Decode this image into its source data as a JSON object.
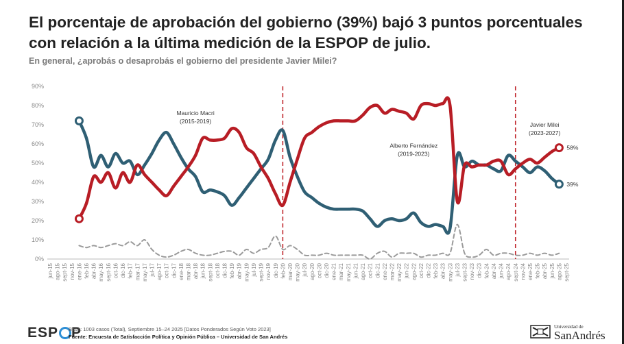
{
  "title": "El porcentaje de aprobación del gobierno (39%) bajó 3 puntos porcentuales con relación a la última medición de la ESPOP de julio.",
  "subtitle": "En general, ¿aprobás o desaprobás el gobierno del presidente Javier Milei?",
  "footer": {
    "logo_text": "ESP",
    "logo_last": "P",
    "note": "Base: 1003 casos (Total), Septiembre 15–24 2025 [Datos Ponderados Según Voto 2023]",
    "source": "Fuente: Encuesta de Satisfacción Política y Opinión Pública – Universidad de San Andrés",
    "university_small": "Universidad de",
    "university_big": "SanAndrés"
  },
  "colors": {
    "approve": "#2f5f74",
    "disapprove": "#b81d25",
    "nsnc": "#9a9a9a",
    "divider": "#c0282e"
  },
  "chart_data": {
    "type": "line",
    "ylim": [
      0,
      90
    ],
    "yticks": [
      "0%",
      "10%",
      "20%",
      "30%",
      "40%",
      "50%",
      "60%",
      "70%",
      "80%",
      "90%"
    ],
    "x": [
      "jun-15",
      "ago-15",
      "sept-15",
      "nov-15",
      "ene-16",
      "feb-16",
      "abr-16",
      "may-16",
      "sept-16",
      "oct-16",
      "dic-16",
      "feb-17",
      "mar-17",
      "may-17",
      "jul-17",
      "ago-17",
      "oct-17",
      "dic-17",
      "ene-18",
      "mar-18",
      "abr-18",
      "jun-18",
      "sept-18",
      "oct-18",
      "dic-18",
      "feb-19",
      "abr-19",
      "may-19",
      "jul-19",
      "sept-19",
      "nov-19",
      "dic-19",
      "feb-20",
      "mar-20",
      "may-20",
      "jul-20",
      "ago-20",
      "oct-20",
      "dic-20",
      "ene-21",
      "mar-21",
      "may-21",
      "jun-21",
      "ago-21",
      "oct-21",
      "dic-21",
      "ene-22",
      "mar-22",
      "may-22",
      "jun-22",
      "ago-22",
      "oct-22",
      "dic-22",
      "feb-23",
      "abr-23",
      "may-23",
      "jul-23",
      "sept-23",
      "nov-23",
      "dic-23",
      "feb-24",
      "abr-24",
      "jun-24",
      "ago-24",
      "sept-24",
      "nov-24",
      "ene-25",
      "feb-25",
      "abr-25",
      "jun-25",
      "ago-25",
      "sept-25"
    ],
    "xtick_labels": [
      "jun-15",
      "ago-15",
      "sept-15",
      "nov-15",
      "ene-16",
      "feb-16",
      "abr-16",
      "may-16",
      "sept-16",
      "oct-16",
      "dic-16",
      "feb-17",
      "mar-17",
      "may-17",
      "jul-17",
      "ago-17",
      "oct-17",
      "dic-17",
      "ene-18",
      "mar-18",
      "abr-18",
      "jun-18",
      "sept-18",
      "oct-18",
      "dic-18",
      "feb-19",
      "abr-19",
      "may-19",
      "jul-19",
      "sept-19",
      "nov-19",
      "dic-19",
      "feb-20",
      "mar-20",
      "may-20",
      "jul-20",
      "ago-20",
      "oct-20",
      "dic-20",
      "ene-21",
      "mar-21",
      "may-21",
      "jun-21",
      "ago-21",
      "oct-21",
      "dic-21",
      "ene-22",
      "mar-22",
      "may-22",
      "jun-22",
      "ago-22",
      "oct-22",
      "dic-22",
      "feb-23",
      "abr-23",
      "may-23",
      "jul-23",
      "sept-23",
      "nov-23",
      "dic-23",
      "feb-24",
      "abr-24",
      "jun-24",
      "ago-24",
      "sept-24",
      "nov-24",
      "ene-25",
      "feb-25",
      "abr-25",
      "jun-25",
      "ago-25",
      "sept-25"
    ],
    "series": [
      {
        "key": "approve",
        "points": [
          [
            4,
            72
          ],
          [
            5,
            63
          ],
          [
            6,
            48
          ],
          [
            7,
            54
          ],
          [
            8,
            48
          ],
          [
            9,
            55
          ],
          [
            10,
            50
          ],
          [
            11,
            51
          ],
          [
            12,
            44
          ],
          [
            13,
            49
          ],
          [
            14,
            55
          ],
          [
            15,
            62
          ],
          [
            16,
            66
          ],
          [
            17,
            60
          ],
          [
            18,
            53
          ],
          [
            19,
            47
          ],
          [
            20,
            43
          ],
          [
            21,
            35
          ],
          [
            22,
            36
          ],
          [
            23,
            35
          ],
          [
            24,
            33
          ],
          [
            25,
            28
          ],
          [
            26,
            32
          ],
          [
            27,
            37
          ],
          [
            28,
            42
          ],
          [
            29,
            47
          ],
          [
            30,
            52
          ],
          [
            31,
            62
          ],
          [
            32,
            67
          ],
          [
            33,
            53
          ],
          [
            34,
            43
          ],
          [
            35,
            35
          ],
          [
            36,
            32
          ],
          [
            37,
            29
          ],
          [
            38,
            27
          ],
          [
            39,
            26
          ],
          [
            40,
            26
          ],
          [
            41,
            26
          ],
          [
            42,
            26
          ],
          [
            43,
            25
          ],
          [
            44,
            21
          ],
          [
            45,
            17
          ],
          [
            46,
            20
          ],
          [
            47,
            21
          ],
          [
            48,
            20
          ],
          [
            49,
            21
          ],
          [
            50,
            24
          ],
          [
            51,
            19
          ],
          [
            52,
            17
          ],
          [
            53,
            18
          ],
          [
            54,
            17
          ],
          [
            55,
            16
          ],
          [
            56,
            54
          ],
          [
            57,
            48
          ],
          [
            58,
            51
          ],
          [
            59,
            49
          ],
          [
            60,
            49
          ],
          [
            61,
            47
          ],
          [
            62,
            46
          ],
          [
            63,
            54
          ],
          [
            64,
            51
          ],
          [
            65,
            48
          ],
          [
            66,
            45
          ],
          [
            67,
            48
          ],
          [
            68,
            46
          ],
          [
            69,
            42
          ],
          [
            70,
            39
          ]
        ]
      },
      {
        "key": "disapprove",
        "points": [
          [
            4,
            21
          ],
          [
            5,
            29
          ],
          [
            6,
            43
          ],
          [
            7,
            40
          ],
          [
            8,
            45
          ],
          [
            9,
            37
          ],
          [
            10,
            45
          ],
          [
            11,
            40
          ],
          [
            12,
            49
          ],
          [
            13,
            44
          ],
          [
            14,
            40
          ],
          [
            15,
            36
          ],
          [
            16,
            33
          ],
          [
            17,
            38
          ],
          [
            18,
            43
          ],
          [
            19,
            48
          ],
          [
            20,
            54
          ],
          [
            21,
            63
          ],
          [
            22,
            62
          ],
          [
            23,
            62
          ],
          [
            24,
            63
          ],
          [
            25,
            68
          ],
          [
            26,
            66
          ],
          [
            27,
            58
          ],
          [
            28,
            55
          ],
          [
            29,
            48
          ],
          [
            30,
            42
          ],
          [
            31,
            34
          ],
          [
            32,
            28
          ],
          [
            33,
            40
          ],
          [
            34,
            52
          ],
          [
            35,
            63
          ],
          [
            36,
            66
          ],
          [
            37,
            69
          ],
          [
            38,
            71
          ],
          [
            39,
            72
          ],
          [
            40,
            72
          ],
          [
            41,
            72
          ],
          [
            42,
            72
          ],
          [
            43,
            75
          ],
          [
            44,
            79
          ],
          [
            45,
            80
          ],
          [
            46,
            76
          ],
          [
            47,
            78
          ],
          [
            48,
            77
          ],
          [
            49,
            76
          ],
          [
            50,
            73
          ],
          [
            51,
            80
          ],
          [
            52,
            81
          ],
          [
            53,
            80
          ],
          [
            54,
            81
          ],
          [
            55,
            80
          ],
          [
            56,
            30
          ],
          [
            57,
            49
          ],
          [
            58,
            48
          ],
          [
            59,
            49
          ],
          [
            60,
            49
          ],
          [
            61,
            51
          ],
          [
            62,
            51
          ],
          [
            63,
            44
          ],
          [
            64,
            47
          ],
          [
            65,
            50
          ],
          [
            66,
            52
          ],
          [
            67,
            50
          ],
          [
            68,
            53
          ],
          [
            69,
            56
          ],
          [
            70,
            58
          ]
        ]
      },
      {
        "key": "nsnc",
        "points": [
          [
            4,
            7
          ],
          [
            5,
            6
          ],
          [
            6,
            7
          ],
          [
            7,
            6
          ],
          [
            8,
            7
          ],
          [
            9,
            8
          ],
          [
            10,
            7
          ],
          [
            11,
            9
          ],
          [
            12,
            7
          ],
          [
            13,
            10
          ],
          [
            14,
            5
          ],
          [
            15,
            2
          ],
          [
            16,
            1
          ],
          [
            17,
            2
          ],
          [
            18,
            4
          ],
          [
            19,
            5
          ],
          [
            20,
            3
          ],
          [
            21,
            2
          ],
          [
            22,
            2
          ],
          [
            23,
            3
          ],
          [
            24,
            4
          ],
          [
            25,
            4
          ],
          [
            26,
            2
          ],
          [
            27,
            5
          ],
          [
            28,
            3
          ],
          [
            29,
            5
          ],
          [
            30,
            6
          ],
          [
            31,
            12
          ],
          [
            32,
            5
          ],
          [
            33,
            7
          ],
          [
            34,
            5
          ],
          [
            35,
            2
          ],
          [
            36,
            2
          ],
          [
            37,
            2
          ],
          [
            38,
            3
          ],
          [
            39,
            2
          ],
          [
            40,
            2
          ],
          [
            41,
            2
          ],
          [
            42,
            2
          ],
          [
            43,
            2
          ],
          [
            44,
            0
          ],
          [
            45,
            3
          ],
          [
            46,
            4
          ],
          [
            47,
            1
          ],
          [
            48,
            3
          ],
          [
            49,
            3
          ],
          [
            50,
            3
          ],
          [
            51,
            1
          ],
          [
            52,
            2
          ],
          [
            53,
            2
          ],
          [
            54,
            3
          ],
          [
            55,
            3
          ],
          [
            56,
            18
          ],
          [
            57,
            3
          ],
          [
            58,
            1
          ],
          [
            59,
            2
          ],
          [
            60,
            5
          ],
          [
            61,
            2
          ],
          [
            62,
            3
          ],
          [
            63,
            3
          ],
          [
            64,
            2
          ],
          [
            65,
            2
          ],
          [
            66,
            3
          ],
          [
            67,
            2
          ],
          [
            68,
            3
          ],
          [
            69,
            2
          ],
          [
            70,
            3
          ]
        ]
      }
    ],
    "dividers": [
      32,
      64
    ],
    "annotations": [
      {
        "lines": [
          "Mauricio Macri",
          "(2015-2019)"
        ],
        "x": 20,
        "y": 75
      },
      {
        "lines": [
          "Alberto Fernández",
          "(2019-2023)"
        ],
        "x": 50,
        "y": 58
      },
      {
        "lines": [
          "Javier Milei",
          "(2023-2027)"
        ],
        "x": 68,
        "y": 69
      }
    ],
    "end_labels": [
      {
        "text": "58%",
        "series": "disapprove",
        "x": 70,
        "y": 58
      },
      {
        "text": "39%",
        "series": "approve",
        "x": 70,
        "y": 39
      }
    ],
    "markers": [
      {
        "series": "approve",
        "x": 4,
        "y": 72
      },
      {
        "series": "disapprove",
        "x": 4,
        "y": 21
      },
      {
        "series": "approve",
        "x": 70,
        "y": 39
      },
      {
        "series": "disapprove",
        "x": 70,
        "y": 58
      }
    ]
  }
}
